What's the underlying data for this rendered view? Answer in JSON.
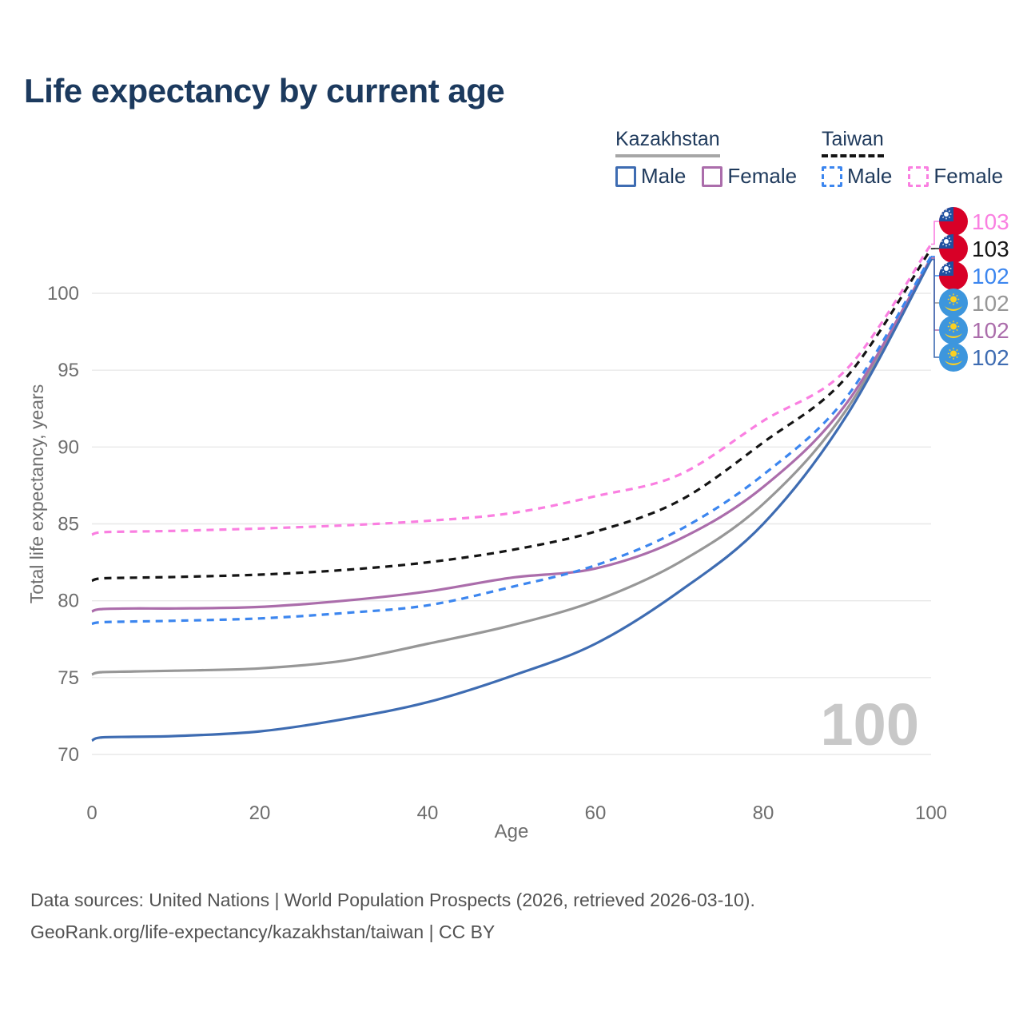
{
  "title": "Life expectancy by current age",
  "legend": {
    "groups": [
      {
        "country": "Kazakhstan",
        "line_style": "solid",
        "underline_color": "#a6a6a6",
        "items": [
          {
            "label": "Male",
            "color": "#3e6cb2",
            "dashed": false
          },
          {
            "label": "Female",
            "color": "#ab6dab",
            "dashed": false
          }
        ]
      },
      {
        "country": "Taiwan",
        "line_style": "dashed",
        "underline_color": "#141414",
        "items": [
          {
            "label": "Male",
            "color": "#3c86ef",
            "dashed": true
          },
          {
            "label": "Female",
            "color": "#fa7fe1",
            "dashed": true
          }
        ]
      }
    ]
  },
  "chart_data": {
    "type": "line",
    "title": "Life expectancy by current age",
    "xlabel": "Age",
    "ylabel": "Total life expectancy, years",
    "x_ticks": [
      0,
      20,
      40,
      60,
      80,
      100
    ],
    "y_ticks": [
      70,
      75,
      80,
      85,
      90,
      95,
      100
    ],
    "xlim": [
      0,
      100
    ],
    "ylim": [
      70,
      103.5
    ],
    "grid": "horizontal",
    "legend_position": "top-right",
    "x": [
      0,
      1,
      5,
      10,
      20,
      30,
      40,
      50,
      60,
      70,
      80,
      90,
      100
    ],
    "series": [
      {
        "name": "Taiwan Female",
        "country": "Taiwan",
        "sex": "Female",
        "color": "#fa7fe1",
        "dash": true,
        "end_label": "103",
        "values": [
          84.3,
          84.45,
          84.5,
          84.55,
          84.7,
          84.9,
          85.2,
          85.7,
          86.8,
          88.2,
          91.7,
          95.1,
          103.2
        ]
      },
      {
        "name": "Taiwan Both sexes",
        "country": "Taiwan",
        "sex": "Both",
        "color": "#141414",
        "dash": true,
        "end_label": "103",
        "values": [
          81.3,
          81.45,
          81.5,
          81.55,
          81.7,
          82.0,
          82.5,
          83.3,
          84.5,
          86.5,
          90.3,
          94.6,
          102.9
        ]
      },
      {
        "name": "Taiwan Male",
        "country": "Taiwan",
        "sex": "Male",
        "color": "#3c86ef",
        "dash": true,
        "end_label": "102",
        "values": [
          78.5,
          78.6,
          78.65,
          78.7,
          78.85,
          79.2,
          79.7,
          80.9,
          82.3,
          84.6,
          88.2,
          93.3,
          102.4
        ]
      },
      {
        "name": "Kazakhstan Both sexes",
        "country": "Kazakhstan",
        "sex": "Both",
        "color": "#979797",
        "dash": false,
        "end_label": "102",
        "values": [
          75.2,
          75.35,
          75.4,
          75.45,
          75.6,
          76.1,
          77.2,
          78.4,
          80.0,
          82.5,
          86.3,
          92.5,
          102.3
        ]
      },
      {
        "name": "Kazakhstan Female",
        "country": "Kazakhstan",
        "sex": "Female",
        "color": "#ab6dab",
        "dash": false,
        "end_label": "102",
        "values": [
          79.3,
          79.45,
          79.5,
          79.5,
          79.6,
          80.0,
          80.6,
          81.5,
          82.1,
          84.0,
          87.4,
          92.9,
          102.3
        ]
      },
      {
        "name": "Kazakhstan Male",
        "country": "Kazakhstan",
        "sex": "Male",
        "color": "#3e6cb2",
        "dash": false,
        "end_label": "102",
        "values": [
          70.9,
          71.1,
          71.15,
          71.2,
          71.5,
          72.3,
          73.4,
          75.1,
          77.2,
          80.6,
          85.0,
          92.1,
          102.2
        ]
      }
    ],
    "watermark": "100"
  },
  "colors": {
    "grid": "#e8e8e8",
    "axis_text": "#6e6e6e",
    "title_text": "#1c3a5e",
    "watermark": "#c8c8c8",
    "footer_text": "#525252"
  },
  "flags": {
    "taiwan": {
      "field": "#d80027",
      "canton": "#1e50a0",
      "sun": "#ffffff"
    },
    "kazakhstan": {
      "field": "#3d96dd",
      "gold": "#fcd021"
    }
  },
  "footer": {
    "line1": "Data sources: United Nations | World Population Prospects (2026, retrieved 2026-03-10).",
    "line2": "GeoRank.org/life-expectancy/kazakhstan/taiwan | CC BY"
  }
}
